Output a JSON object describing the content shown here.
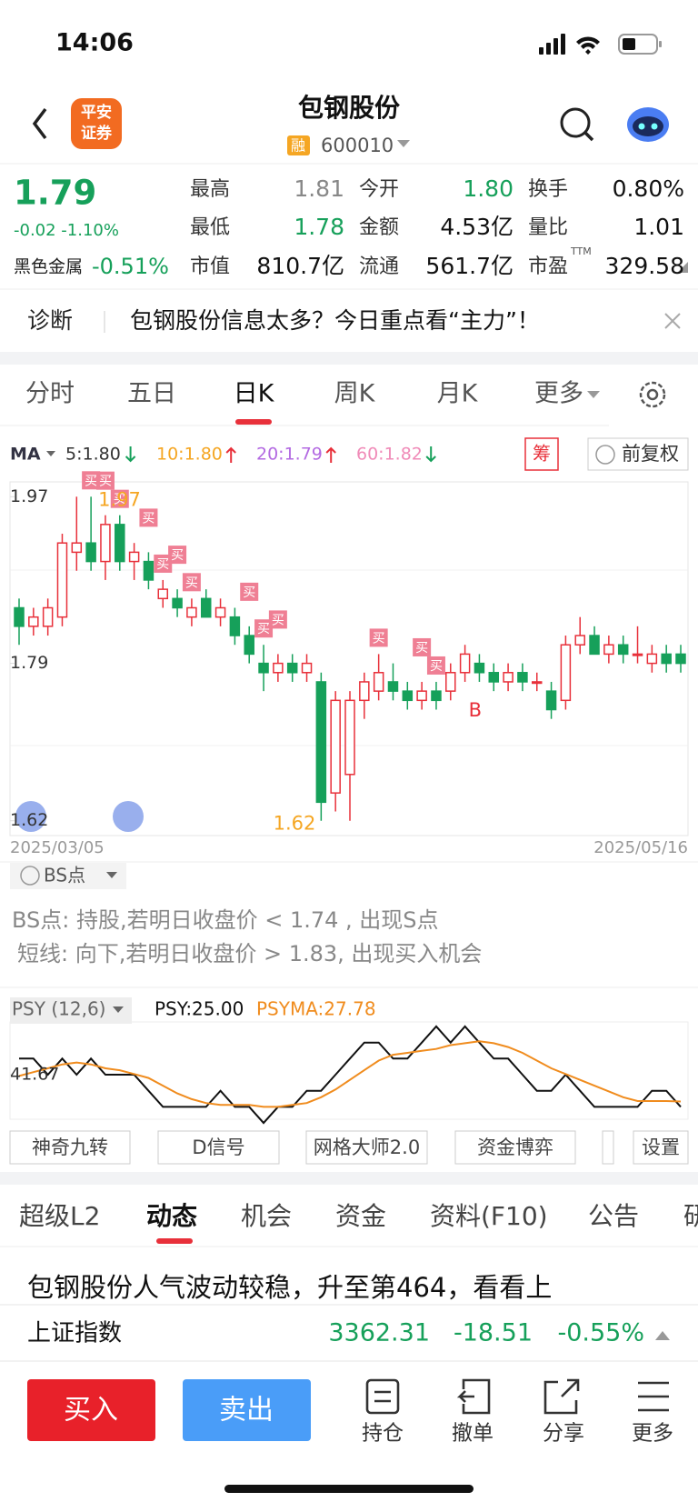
{
  "status": {
    "time": "14:06"
  },
  "header": {
    "logo_top": "平安",
    "logo_bottom": "证券",
    "title": "包钢股份",
    "tag": "融",
    "code": "600010"
  },
  "quote": {
    "price": "1.79",
    "change": "-0.02 -1.10%",
    "sector": "黑色金属",
    "sector_change": "-0.51%",
    "stats": [
      {
        "label": "最高",
        "value": "1.81",
        "color": "#888888"
      },
      {
        "label": "今开",
        "value": "1.80",
        "color": "#16a05a"
      },
      {
        "label": "换手",
        "value": "0.80%",
        "color": "#111111"
      },
      {
        "label": "最低",
        "value": "1.78",
        "color": "#16a05a"
      },
      {
        "label": "金额",
        "value": "4.53亿",
        "color": "#111111"
      },
      {
        "label": "量比",
        "value": "1.01",
        "color": "#111111"
      },
      {
        "label": "市值",
        "value": "810.7亿",
        "color": "#111111"
      },
      {
        "label": "流通",
        "value": "561.7亿",
        "color": "#111111"
      },
      {
        "label": "市盈",
        "sup": "TTM",
        "value": "329.58",
        "color": "#111111"
      }
    ]
  },
  "banner": {
    "label": "诊断",
    "text": "包钢股份信息太多？今日重点看“主力”！"
  },
  "tabs": {
    "items": [
      "分时",
      "五日",
      "日K",
      "周K",
      "月K",
      "更多"
    ],
    "active": 2
  },
  "ma_legend": {
    "label": "MA",
    "items": [
      {
        "label": "5:1.80",
        "color": "#333333",
        "trend": "down"
      },
      {
        "label": "10:1.80",
        "color": "#f5a623",
        "trend": "up"
      },
      {
        "label": "20:1.79",
        "color": "#b36ae2",
        "trend": "up"
      },
      {
        "label": "60:1.82",
        "color": "#f08bb8",
        "trend": "down"
      }
    ],
    "chip": "筹",
    "adjust": "前复权"
  },
  "chart_data": [
    {
      "type": "candlestick",
      "x_labels": [
        "2025/03/05",
        "2025/05/16"
      ],
      "ylim": [
        1.604,
        1.986
      ],
      "yticks": [
        1.97,
        1.79,
        1.62
      ],
      "up_color": "#e8303a",
      "down_color": "#16a05a",
      "ohlc": [
        [
          1.85,
          1.86,
          1.81,
          1.83
        ],
        [
          1.83,
          1.85,
          1.82,
          1.84
        ],
        [
          1.83,
          1.86,
          1.82,
          1.85
        ],
        [
          1.84,
          1.93,
          1.83,
          1.92
        ],
        [
          1.91,
          1.97,
          1.89,
          1.92
        ],
        [
          1.92,
          1.97,
          1.89,
          1.9
        ],
        [
          1.9,
          1.95,
          1.88,
          1.94
        ],
        [
          1.94,
          1.95,
          1.89,
          1.9
        ],
        [
          1.9,
          1.92,
          1.88,
          1.91
        ],
        [
          1.9,
          1.91,
          1.87,
          1.88
        ],
        [
          1.86,
          1.88,
          1.85,
          1.87
        ],
        [
          1.86,
          1.87,
          1.84,
          1.85
        ],
        [
          1.84,
          1.86,
          1.83,
          1.85
        ],
        [
          1.86,
          1.87,
          1.84,
          1.84
        ],
        [
          1.84,
          1.86,
          1.83,
          1.85
        ],
        [
          1.84,
          1.85,
          1.81,
          1.82
        ],
        [
          1.82,
          1.83,
          1.79,
          1.8
        ],
        [
          1.79,
          1.81,
          1.76,
          1.78
        ],
        [
          1.78,
          1.8,
          1.77,
          1.79
        ],
        [
          1.79,
          1.8,
          1.77,
          1.78
        ],
        [
          1.78,
          1.8,
          1.77,
          1.79
        ],
        [
          1.77,
          1.78,
          1.62,
          1.64
        ],
        [
          1.65,
          1.76,
          1.63,
          1.75
        ],
        [
          1.67,
          1.76,
          1.62,
          1.75
        ],
        [
          1.75,
          1.78,
          1.73,
          1.77
        ],
        [
          1.76,
          1.8,
          1.75,
          1.78
        ],
        [
          1.77,
          1.79,
          1.75,
          1.76
        ],
        [
          1.76,
          1.77,
          1.74,
          1.75
        ],
        [
          1.75,
          1.77,
          1.74,
          1.76
        ],
        [
          1.76,
          1.77,
          1.74,
          1.75
        ],
        [
          1.76,
          1.79,
          1.75,
          1.78
        ],
        [
          1.78,
          1.81,
          1.77,
          1.8
        ],
        [
          1.79,
          1.8,
          1.77,
          1.78
        ],
        [
          1.78,
          1.79,
          1.76,
          1.77
        ],
        [
          1.77,
          1.79,
          1.76,
          1.78
        ],
        [
          1.78,
          1.79,
          1.76,
          1.77
        ],
        [
          1.77,
          1.78,
          1.76,
          1.77
        ],
        [
          1.76,
          1.77,
          1.73,
          1.74
        ],
        [
          1.75,
          1.82,
          1.74,
          1.81
        ],
        [
          1.81,
          1.84,
          1.8,
          1.82
        ],
        [
          1.82,
          1.83,
          1.8,
          1.8
        ],
        [
          1.8,
          1.82,
          1.79,
          1.81
        ],
        [
          1.81,
          1.82,
          1.79,
          1.8
        ],
        [
          1.8,
          1.83,
          1.79,
          1.8
        ],
        [
          1.79,
          1.81,
          1.78,
          1.8
        ],
        [
          1.8,
          1.81,
          1.78,
          1.79
        ],
        [
          1.8,
          1.81,
          1.78,
          1.79
        ]
      ],
      "annotations": [
        {
          "text": "1.97",
          "candle": 5,
          "color": "#f5a623"
        },
        {
          "text": "1.62",
          "candle": 21,
          "color": "#f5a623"
        },
        {
          "text": "B",
          "candle": 31,
          "color": "#e8303a"
        }
      ],
      "markers": [
        {
          "text": "买",
          "candle": 5
        },
        {
          "text": "买",
          "candle": 6
        },
        {
          "text": "买",
          "candle": 7
        },
        {
          "text": "买",
          "candle": 9
        },
        {
          "text": "买",
          "candle": 10
        },
        {
          "text": "买",
          "candle": 11
        },
        {
          "text": "买",
          "candle": 12
        },
        {
          "text": "买",
          "candle": 16
        },
        {
          "text": "买",
          "candle": 17
        },
        {
          "text": "买",
          "candle": 18
        },
        {
          "text": "买",
          "candle": 25
        },
        {
          "text": "买",
          "candle": 28
        },
        {
          "text": "买",
          "candle": 29
        }
      ]
    },
    {
      "type": "line",
      "title": "PSY (12,6)",
      "ylim": [
        18.6,
        69
      ],
      "yticks": [
        41.67
      ],
      "series": [
        {
          "name": "PSY:25.00",
          "color": "#111111",
          "values": [
            50,
            50,
            41.67,
            50,
            41.67,
            50,
            41.67,
            41.67,
            41.67,
            33.33,
            25,
            25,
            25,
            25,
            33.33,
            25,
            25,
            16.67,
            25,
            25,
            33.33,
            33.33,
            41.67,
            50,
            58.33,
            58.33,
            50,
            50,
            58.33,
            66.67,
            58.33,
            66.67,
            58.33,
            50,
            50,
            41.67,
            33.33,
            33.33,
            41.67,
            33.33,
            25,
            25,
            25,
            25,
            33.33,
            33.33,
            25
          ]
        },
        {
          "name": "PSYMA:27.78",
          "color": "#f08c1e",
          "values": [
            41,
            43,
            45,
            47,
            48,
            47,
            45,
            44,
            42,
            40,
            36,
            32,
            29,
            27,
            26,
            26,
            26,
            25,
            25,
            26,
            27,
            30,
            34,
            39,
            44,
            49,
            52,
            53,
            54,
            55,
            57,
            58,
            59,
            58,
            56,
            53,
            49,
            45,
            42,
            39,
            36,
            33,
            30,
            28,
            28,
            28,
            27.78
          ]
        }
      ]
    }
  ],
  "bs": {
    "label": "BS点",
    "line1": "BS点: 持股,若明日收盘价 < 1.74 , 出现S点",
    "line2": "短线: 向下,若明日收盘价 > 1.83, 出现买入机会"
  },
  "tools": [
    "神奇九转",
    "D信号",
    "网格大师2.0",
    "资金博弈",
    "设置"
  ],
  "subtabs": {
    "items": [
      "超级L2",
      "动态",
      "机会",
      "资金",
      "资料(F10)",
      "公告",
      "研"
    ],
    "active": 1
  },
  "news": "包钢股份人气波动较稳，升至第464，看看上",
  "index_bar": {
    "name": "上证指数",
    "value": "3362.31",
    "change": "-18.51",
    "pct": "-0.55%"
  },
  "bottom": {
    "buy": "买入",
    "sell": "卖出",
    "actions": [
      "持仓",
      "撤单",
      "分享",
      "更多"
    ]
  }
}
